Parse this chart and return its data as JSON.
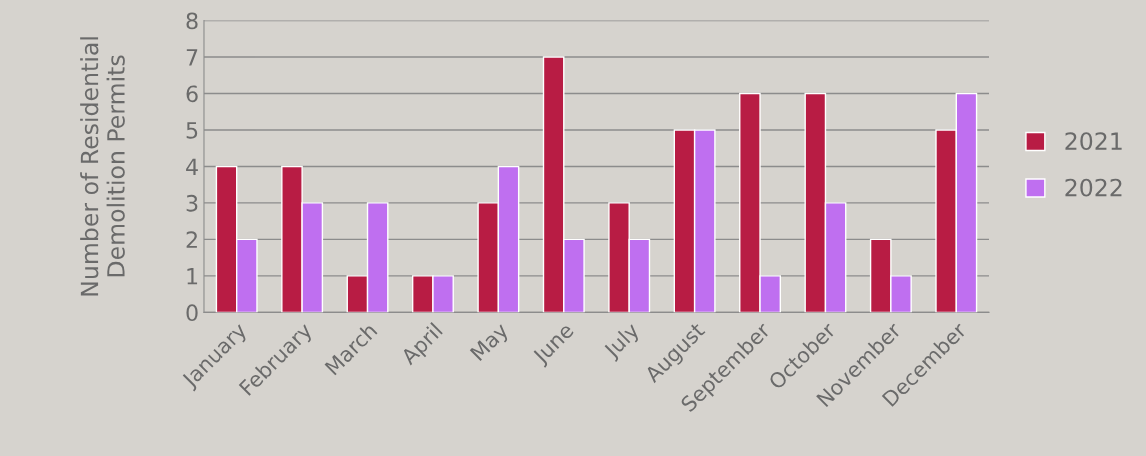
{
  "chart_data": {
    "type": "bar",
    "ylabel": "Number of Residential\nDemolition Permits",
    "categories": [
      "January",
      "February",
      "March",
      "April",
      "May",
      "June",
      "July",
      "August",
      "September",
      "October",
      "November",
      "December"
    ],
    "series": [
      {
        "name": "2021",
        "color": "#b81c44",
        "values": [
          4,
          4,
          1,
          1,
          3,
          7,
          3,
          5,
          6,
          6,
          2,
          5
        ]
      },
      {
        "name": "2022",
        "color": "#bf6ff0",
        "values": [
          2,
          3,
          3,
          1,
          4,
          2,
          2,
          5,
          1,
          3,
          1,
          6
        ]
      }
    ],
    "ylim": [
      0,
      8
    ],
    "yticks": [
      0,
      1,
      2,
      3,
      4,
      5,
      6,
      7,
      8
    ],
    "grid": "y",
    "legend": "right"
  }
}
